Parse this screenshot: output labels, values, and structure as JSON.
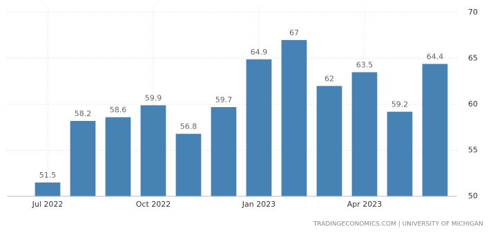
{
  "chart_data": {
    "type": "bar",
    "categories": [
      "Jul 2022",
      null,
      null,
      "Oct 2022",
      null,
      null,
      "Jan 2023",
      null,
      null,
      "Apr 2023",
      null,
      null
    ],
    "values": [
      51.5,
      58.2,
      58.6,
      59.9,
      56.8,
      59.7,
      64.9,
      67,
      62,
      63.5,
      59.2,
      64.4
    ],
    "color": "#4682b4",
    "ylim": [
      50,
      70
    ],
    "yticks": [
      50,
      55,
      60,
      65,
      70
    ],
    "grid": true,
    "source": "TRADINGECONOMICS.COM  |  UNIVERSITY OF MICHIGAN"
  }
}
